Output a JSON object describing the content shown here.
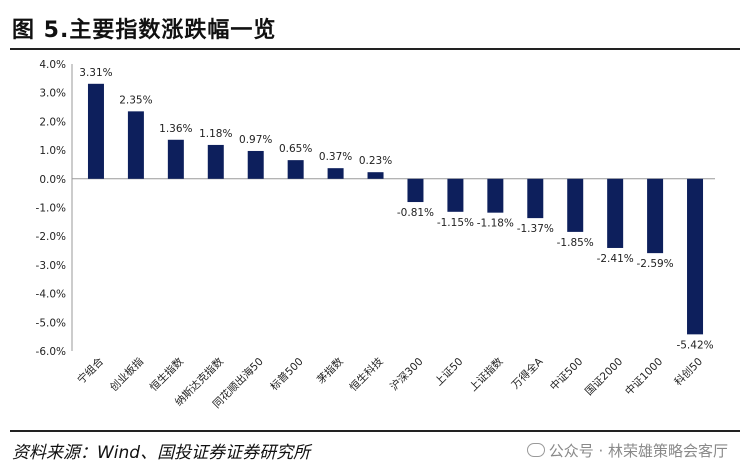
{
  "figure_title": "图 5.主要指数涨跌幅一览",
  "source_note": "资料来源：Wind、国投证券证券研究所",
  "watermark": "公众号 · 林荣雄策略会客厅",
  "colors": {
    "bar": "#0d1f5c",
    "axis": "#9a9a9a",
    "rule": "#222222"
  },
  "chart_data": {
    "type": "bar",
    "title": "",
    "xlabel": "",
    "ylabel": "",
    "ylim": [
      -6.0,
      4.0
    ],
    "ytick_step": 1.0,
    "y_tick_labels": [
      "4.0%",
      "3.0%",
      "2.0%",
      "1.0%",
      "0.0%",
      "-1.0%",
      "-2.0%",
      "-3.0%",
      "-4.0%",
      "-5.0%",
      "-6.0%"
    ],
    "grid": false,
    "categories": [
      "宁组合",
      "创业板指",
      "恒生指数",
      "纳斯达克指数",
      "同花顺出海50",
      "标普500",
      "茅指数",
      "恒生科技",
      "沪深300",
      "上证50",
      "上证指数",
      "万得全A",
      "中证500",
      "国证2000",
      "中证1000",
      "科创50"
    ],
    "values": [
      3.31,
      2.35,
      1.36,
      1.18,
      0.97,
      0.65,
      0.37,
      0.23,
      -0.81,
      -1.15,
      -1.18,
      -1.37,
      -1.85,
      -2.41,
      -2.59,
      -5.42
    ],
    "data_labels": [
      "3.31%",
      "2.35%",
      "1.36%",
      "1.18%",
      "0.97%",
      "0.65%",
      "0.37%",
      "0.23%",
      "-0.81%",
      "-1.15%",
      "-1.18%",
      "-1.37%",
      "-1.85%",
      "-2.41%",
      "-2.59%",
      "-5.42%"
    ]
  }
}
